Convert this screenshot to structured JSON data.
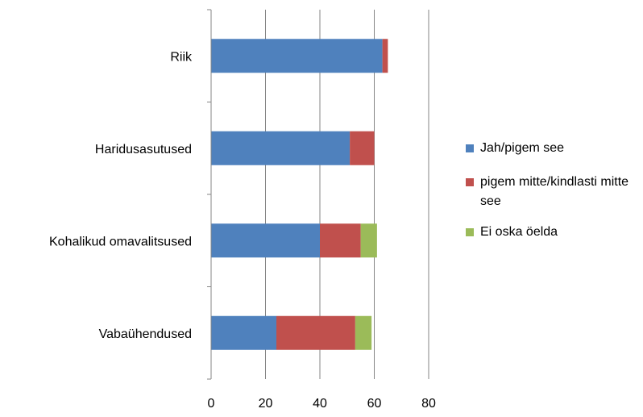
{
  "chart_data": {
    "type": "bar",
    "orientation": "horizontal",
    "stacked": true,
    "categories": [
      "Riik",
      "Haridusasutused",
      "Kohalikud omavalitsused",
      "Vabaühendused"
    ],
    "series": [
      {
        "name": "Jah/pigem see",
        "color": "#4F81BD",
        "values": [
          63,
          51,
          40,
          24
        ]
      },
      {
        "name": "pigem mitte/kindlasti mitte see",
        "color": "#C0504D",
        "values": [
          2,
          9,
          15,
          29
        ]
      },
      {
        "name": "Ei oska öelda",
        "color": "#9BBB59",
        "values": [
          0,
          0,
          6,
          6
        ]
      }
    ],
    "xlim": [
      0,
      80
    ],
    "xticks": [
      "0",
      "20",
      "40",
      "60",
      "80"
    ],
    "grid": true,
    "legend_position": "right"
  }
}
